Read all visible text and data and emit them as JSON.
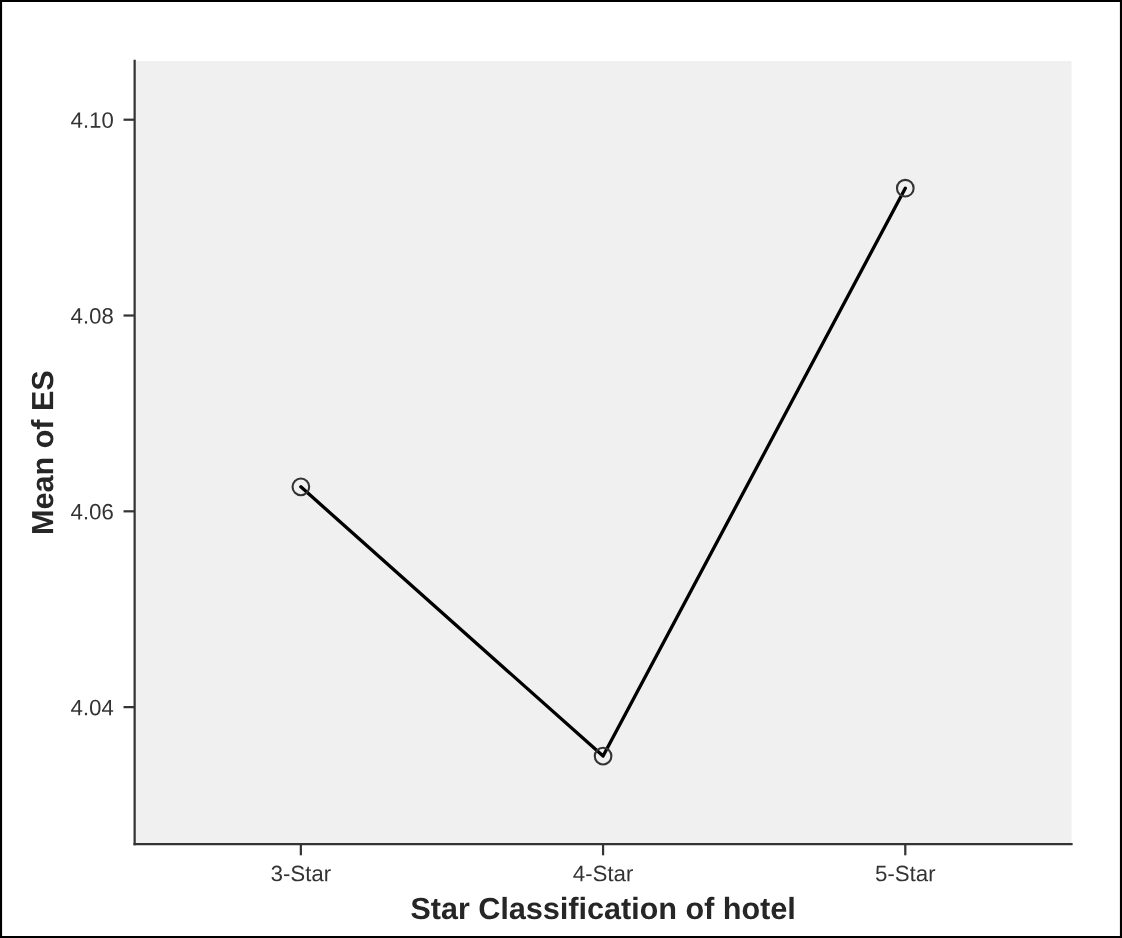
{
  "chart_data": {
    "type": "line",
    "xlabel": "Star Classification of hotel",
    "ylabel": "Mean of ES",
    "categories": [
      "3-Star",
      "4-Star",
      "5-Star"
    ],
    "series": [
      {
        "color": "#000000",
        "values": [
          4.0625,
          4.035,
          4.093
        ]
      }
    ],
    "ylim": [
      4.026,
      4.106
    ],
    "yticks": [
      {
        "value": 4.04,
        "label": "4.04"
      },
      {
        "value": 4.06,
        "label": "4.06"
      },
      {
        "value": 4.08,
        "label": "4.08"
      },
      {
        "value": 4.1,
        "label": "4.10"
      }
    ],
    "marker": "circle",
    "line_style": "solid",
    "grid": false,
    "legend": false
  }
}
